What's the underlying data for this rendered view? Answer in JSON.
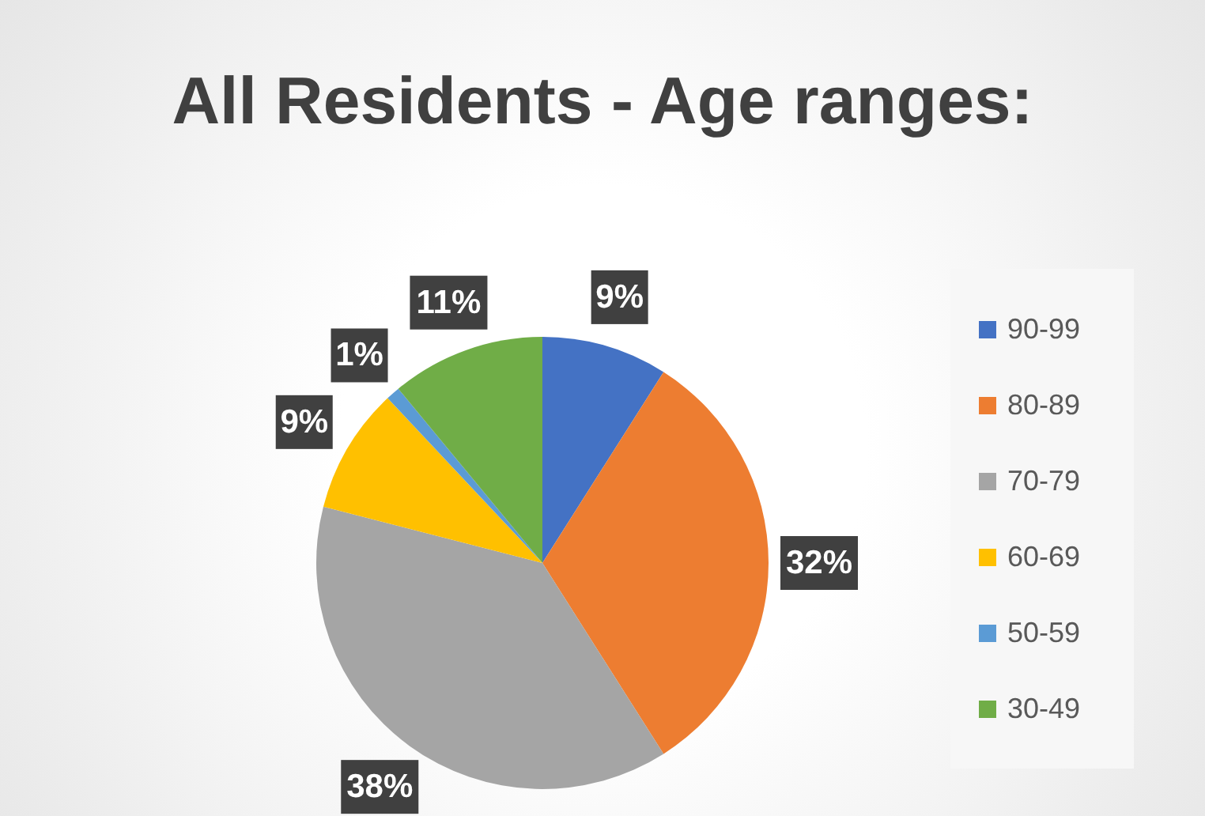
{
  "chart_data": {
    "type": "pie",
    "title": "All Residents - Age ranges:",
    "categories": [
      "90-99",
      "80-89",
      "70-79",
      "60-69",
      "50-59",
      "30-49"
    ],
    "values": [
      9,
      32,
      38,
      9,
      1,
      11
    ],
    "colors": [
      "#4472c4",
      "#ed7d31",
      "#a5a5a5",
      "#ffc000",
      "#5b9bd5",
      "#70ad47"
    ],
    "value_labels": [
      "9%",
      "32%",
      "38%",
      "9%",
      "1%",
      "11%"
    ],
    "legend": "right"
  }
}
